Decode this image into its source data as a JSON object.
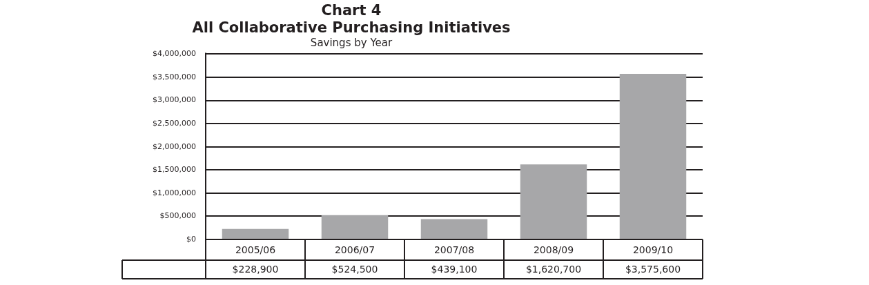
{
  "chart_data": {
    "type": "bar",
    "title": [
      "Chart 4",
      "All Collaborative Purchasing Initiatives"
    ],
    "subtitle": "Savings by Year",
    "categories": [
      "2005/06",
      "2006/07",
      "2007/08",
      "2008/09",
      "2009/10"
    ],
    "values": [
      228900,
      524500,
      439100,
      1620700,
      3575600
    ],
    "value_labels": [
      "$228,900",
      "$524,500",
      "$439,100",
      "$1,620,700",
      "$3,575,600"
    ],
    "color": "#a7a7a9",
    "ylim": [
      0,
      4000000
    ],
    "yticks": [
      {
        "value": 0,
        "label": "$0"
      },
      {
        "value": 500000,
        "label": "$500,000"
      },
      {
        "value": 1000000,
        "label": "$1,000,000"
      },
      {
        "value": 1500000,
        "label": "$1,500,000"
      },
      {
        "value": 2000000,
        "label": "$2,000,000"
      },
      {
        "value": 2500000,
        "label": "$2,500,000"
      },
      {
        "value": 3000000,
        "label": "$3,000,000"
      },
      {
        "value": 3500000,
        "label": "$3,500,000"
      },
      {
        "value": 4000000,
        "label": "$4,000,000"
      }
    ],
    "grid": "y",
    "legend": false
  }
}
